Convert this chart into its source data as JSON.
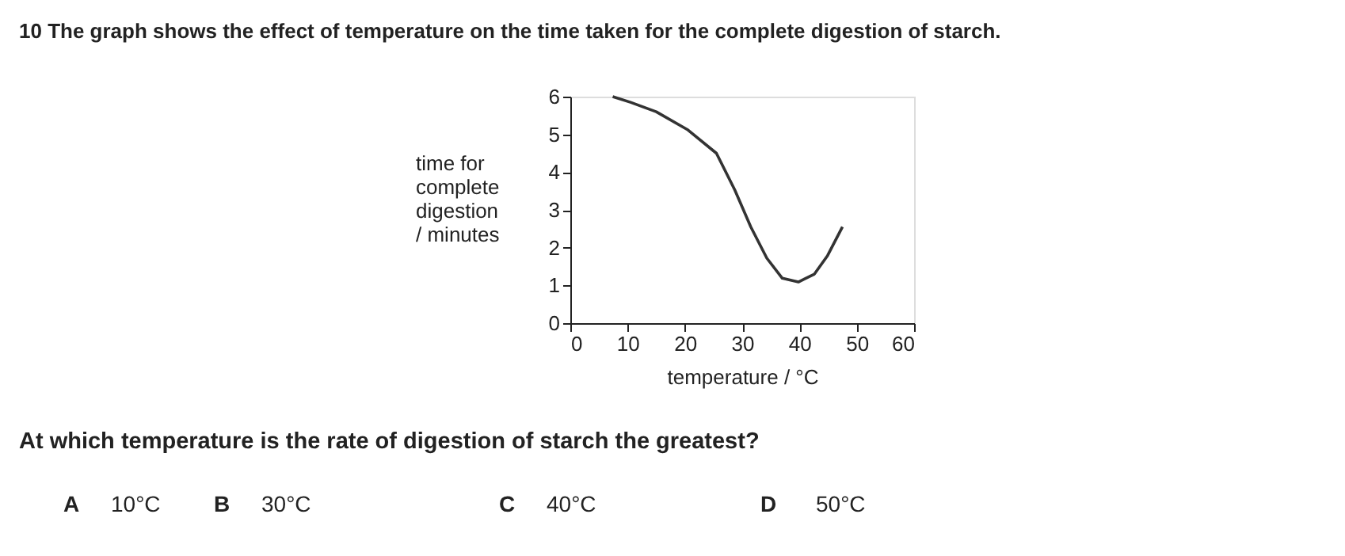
{
  "chart_data": {
    "type": "line",
    "title": "10  The graph shows the effect of temperature on the time taken for the complete digestion of starch.",
    "xlabel": "temperature / °C",
    "ylabel": "time for\ncomplete\ndigestion\n/ minutes",
    "x": [
      7.4,
      10.5,
      15,
      20.4,
      25.5,
      28.7,
      31.5,
      34.3,
      37,
      39.8,
      42.6,
      44.9,
      47.5
    ],
    "series": [
      {
        "color": "#333333",
        "values": [
          6.0,
          5.85,
          5.6,
          5.13,
          4.5,
          3.53,
          2.55,
          1.72,
          1.19,
          1.09,
          1.3,
          1.79,
          2.55
        ]
      }
    ],
    "xlim": [
      0,
      60
    ],
    "ylim": [
      0,
      6
    ],
    "xticks": [
      0,
      10,
      20,
      30,
      40,
      50,
      60
    ],
    "yticks": [
      0,
      1,
      2,
      3,
      4,
      5,
      6
    ],
    "grid": false,
    "marker": "none",
    "line_style": "solid",
    "annotations": [
      "At which temperature is the rate of digestion of starch the greatest?",
      "A",
      "10°C",
      "B",
      "30°C",
      "C",
      "40°C",
      "D",
      "50°C"
    ]
  }
}
